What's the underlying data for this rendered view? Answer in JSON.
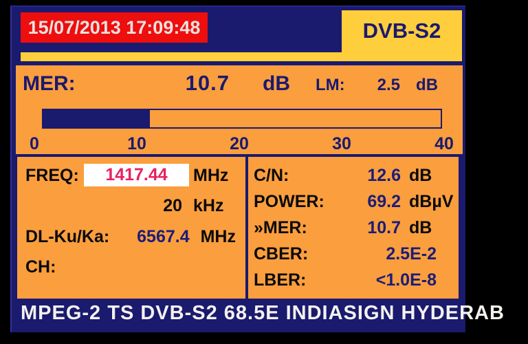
{
  "header": {
    "datetime": "15/07/2013 17:09:48",
    "standard": "DVB-S2"
  },
  "mer_panel": {
    "label": "MER:",
    "value": "10.7",
    "unit": "dB",
    "lm_label": "LM:",
    "lm_value": "2.5",
    "lm_unit": "dB",
    "bar": {
      "min": 0,
      "max": 40,
      "fill_percent": 26.75,
      "fill_style": "width:26.75%"
    },
    "scale": [
      "0",
      "10",
      "20",
      "30",
      "40"
    ]
  },
  "freq_panel": {
    "rows": [
      {
        "label": "FREQ:",
        "value": "1417.44",
        "unit": "MHz"
      },
      {
        "label": "",
        "value": "20",
        "unit": "kHz"
      },
      {
        "label": "DL-Ku/Ka:",
        "value": "6567.4",
        "unit": "MHz"
      },
      {
        "label": "CH:",
        "value": "",
        "unit": ""
      }
    ]
  },
  "measurements": {
    "rows": [
      {
        "label": "C/N:",
        "value": "12.6",
        "unit": "dB"
      },
      {
        "label": "POWER:",
        "value": "69.2",
        "unit": "dBµV"
      },
      {
        "label": "»MER:",
        "value": "10.7",
        "unit": "dB"
      },
      {
        "label": "CBER:",
        "value": "2.5E-2",
        "unit": ""
      },
      {
        "label": "LBER:",
        "value": "<1.0E-8",
        "unit": ""
      }
    ]
  },
  "footer": {
    "text": "MPEG-2 TS DVB-S2 68.5E INDIASIGN HYDERAB"
  },
  "colors": {
    "navy": "#1a1a6e",
    "orange": "#fa9e3e",
    "yellow": "#ffce3c",
    "red": "#ee0e0e",
    "pink_value": "#e8215d",
    "value_navy": "#1c1c78",
    "label_black": "#0a0a0a",
    "date_text": "#ece2e0",
    "footer_text": "#f4f2ee"
  }
}
